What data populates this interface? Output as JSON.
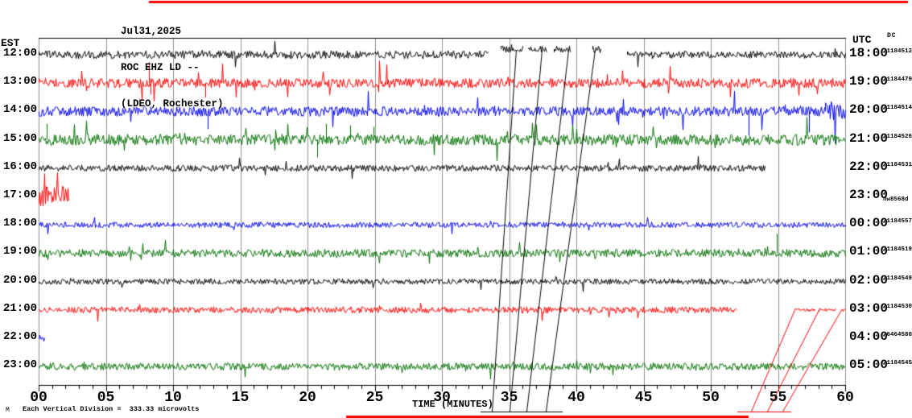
{
  "header": {
    "date": "Jul31,2025",
    "station": "ROC EHZ LD --",
    "location": "(LDEO, Rochester)"
  },
  "left_axis": {
    "label": "EST"
  },
  "right_axis": {
    "label": "UTC",
    "dc_label": "DC"
  },
  "x_axis": {
    "label": "TIME (MINUTES)",
    "tick_labels": [
      "00",
      "05",
      "10",
      "15",
      "20",
      "25",
      "30",
      "35",
      "40",
      "45",
      "50",
      "55",
      "60"
    ]
  },
  "footer": {
    "scale_note": "Each Vertical Division =  333.33 microvolts",
    "watermark": "M"
  },
  "colors": {
    "black": "#000000",
    "red": "#ff0000",
    "blue": "#0000ee",
    "green": "#007000",
    "grid": "#909090"
  },
  "chart_data": {
    "type": "line",
    "subtype": "helicorder-seismogram",
    "title": "ROC EHZ LD -- (LDEO, Rochester) Jul31,2025",
    "xlabel": "TIME (MINUTES)",
    "xlim": [
      0,
      60
    ],
    "x_major_tick_step": 5,
    "x_minor_tick_step": 1,
    "grid": "vertical-gray-every-5-min",
    "minutes_per_row": 60,
    "rows": [
      {
        "est": "12:00",
        "utc": "18:00",
        "dc": "-1184512",
        "color": "black",
        "spike_p": 0.015,
        "spike_mult": 2.2,
        "segments": [
          {
            "from": 0,
            "to": 33.4,
            "amp": 5
          },
          {
            "from": 34.4,
            "to": 36.0,
            "amp": 4,
            "dy": -7
          },
          {
            "from": 36.4,
            "to": 37.8,
            "amp": 4,
            "dy": -7
          },
          {
            "from": 38.3,
            "to": 39.5,
            "amp": 4,
            "dy": -7
          },
          {
            "from": 41.2,
            "to": 41.8,
            "amp": 5,
            "dy": -7
          },
          {
            "from": 43.8,
            "to": 60,
            "amp": 4.5
          }
        ]
      },
      {
        "est": "13:00",
        "utc": "19:00",
        "dc": "-1184479",
        "color": "red",
        "spike_p": 0.04,
        "spike_mult": 2.4,
        "segments": [
          {
            "from": 0,
            "to": 60,
            "amp": 6
          }
        ],
        "events": [
          {
            "min": 8.2,
            "px": -26
          },
          {
            "min": 8.3,
            "px": 14
          },
          {
            "min": 12.4,
            "px": 18
          }
        ]
      },
      {
        "est": "14:00",
        "utc": "20:00",
        "dc": "-1184514",
        "color": "blue",
        "spike_p": 0.025,
        "spike_mult": 2.5,
        "segments": [
          {
            "from": 0,
            "to": 58.5,
            "amp": 6
          },
          {
            "from": 58.5,
            "to": 60,
            "amp": 13
          }
        ],
        "events": [
          {
            "min": 12.6,
            "px": 22
          },
          {
            "min": 52.8,
            "px": 30
          },
          {
            "min": 57.3,
            "px": 26
          }
        ]
      },
      {
        "est": "15:00",
        "utc": "21:00",
        "dc": "-1184526",
        "color": "green",
        "spike_p": 0.05,
        "spike_mult": 2.4,
        "segments": [
          {
            "from": 0,
            "to": 60,
            "amp": 7
          }
        ],
        "events": [
          {
            "min": 0.6,
            "px": -20
          },
          {
            "min": 20.7,
            "px": 22
          },
          {
            "min": 21.4,
            "px": -20
          },
          {
            "min": 23.2,
            "px": -18
          },
          {
            "min": 24.9,
            "px": -16
          }
        ]
      },
      {
        "est": "16:00",
        "utc": "22:00",
        "dc": "-1184531",
        "color": "black",
        "spike_p": 0.015,
        "spike_mult": 2.2,
        "segments": [
          {
            "from": 0,
            "to": 54,
            "amp": 4
          }
        ]
      },
      {
        "est": "17:00",
        "utc": "23:00",
        "dc": "-nw8568d",
        "color": "red",
        "spike_p": 0.05,
        "spike_mult": 1.8,
        "segments": [
          {
            "from": 0,
            "to": 2.2,
            "amp": 13
          }
        ]
      },
      {
        "est": "18:00",
        "utc": "00:00",
        "dc": "-1184557",
        "color": "blue",
        "spike_p": 0.02,
        "spike_mult": 2.0,
        "segments": [
          {
            "from": 0,
            "to": 60,
            "amp": 3.5
          }
        ]
      },
      {
        "est": "19:00",
        "utc": "01:00",
        "dc": "-1184519",
        "color": "green",
        "spike_p": 0.02,
        "spike_mult": 2.2,
        "segments": [
          {
            "from": 0,
            "to": 60,
            "amp": 5
          }
        ],
        "events": [
          {
            "min": 54.9,
            "px": -24
          }
        ]
      },
      {
        "est": "20:00",
        "utc": "02:00",
        "dc": "-1184549",
        "color": "black",
        "spike_p": 0.015,
        "spike_mult": 2.0,
        "segments": [
          {
            "from": 0,
            "to": 60,
            "amp": 3.5
          }
        ]
      },
      {
        "est": "21:00",
        "utc": "03:00",
        "dc": "-1184530",
        "color": "red",
        "spike_p": 0.02,
        "spike_mult": 2.0,
        "segments": [
          {
            "from": 0,
            "to": 51.9,
            "amp": 4
          },
          {
            "from": 56.2,
            "to": 57.7,
            "amp": 2
          },
          {
            "from": 58.0,
            "to": 59.3,
            "amp": 2
          },
          {
            "from": 59.7,
            "to": 60,
            "amp": 2
          }
        ]
      },
      {
        "est": "22:00",
        "utc": "04:00",
        "dc": "-6464580",
        "color": "blue",
        "spike_p": 0,
        "spike_mult": 1,
        "segments": [
          {
            "from": 0,
            "to": 0.4,
            "amp": 4
          }
        ]
      },
      {
        "est": "23:00",
        "utc": "05:00",
        "dc": "-1184545",
        "color": "green",
        "spike_p": 0.02,
        "spike_mult": 2.0,
        "segments": [
          {
            "from": 0,
            "to": 60,
            "amp": 4.5
          }
        ]
      }
    ],
    "diagonals": [
      {
        "color": "black",
        "bottom_y": 511,
        "top_y": 62,
        "lines": [
          [
            33.7,
            35.5
          ],
          [
            35.0,
            37.4
          ],
          [
            36.3,
            39.4
          ],
          [
            37.7,
            41.4
          ]
        ]
      },
      {
        "color": "red",
        "bottom_y": 511,
        "top_y": 385,
        "lines": [
          [
            53.0,
            56.2
          ],
          [
            54.2,
            58.0
          ],
          [
            55.3,
            59.7
          ]
        ]
      }
    ],
    "underlines": [
      {
        "color": "black",
        "from": 32.9,
        "to": 39.0,
        "y": 511
      },
      {
        "color": "red",
        "from": 52.0,
        "to": 56.0,
        "y": 511
      }
    ],
    "edge_lines": [
      {
        "color": "red",
        "x1": 185,
        "x2": 1128,
        "y": 1,
        "h": 3
      },
      {
        "color": "red",
        "x1": 430,
        "x2": 930,
        "y": 516,
        "h": 3
      }
    ]
  }
}
